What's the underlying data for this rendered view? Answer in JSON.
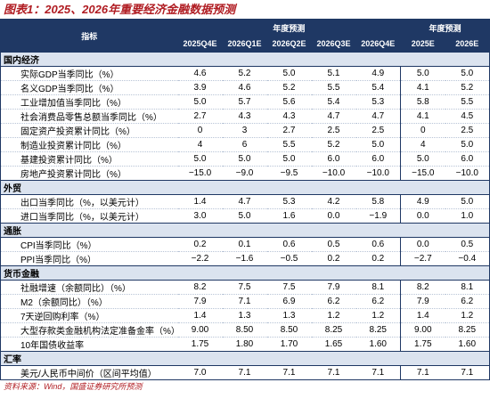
{
  "title": "图表1：2025、2026年重要经济金融数据预测",
  "header": {
    "indicator": "指标",
    "group_quarterly": "年度预测",
    "group_annual": "年度预测",
    "columns": [
      "2025Q4E",
      "2026Q1E",
      "2026Q2E",
      "2026Q3E",
      "2026Q4E",
      "2025E",
      "2026E"
    ]
  },
  "sections": [
    {
      "title": "国内经济",
      "rows": [
        {
          "label": "实际GDP当季同比（%）",
          "values": [
            "4.6",
            "5.2",
            "5.0",
            "5.1",
            "4.9",
            "5.0",
            "5.0"
          ]
        },
        {
          "label": "名义GDP当季同比（%）",
          "values": [
            "3.9",
            "4.6",
            "5.2",
            "5.5",
            "5.4",
            "4.1",
            "5.2"
          ]
        },
        {
          "label": "工业增加值当季同比（%）",
          "values": [
            "5.0",
            "5.7",
            "5.6",
            "5.4",
            "5.3",
            "5.8",
            "5.5"
          ]
        },
        {
          "label": "社会消费品零售总额当季同比（%）",
          "values": [
            "2.7",
            "4.3",
            "4.3",
            "4.7",
            "4.7",
            "4.1",
            "4.5"
          ]
        },
        {
          "label": "固定资产投资累计同比（%）",
          "values": [
            "0",
            "3",
            "2.7",
            "2.5",
            "2.5",
            "0",
            "2.5"
          ]
        },
        {
          "label": "制造业投资累计同比（%）",
          "values": [
            "4",
            "6",
            "5.5",
            "5.2",
            "5.0",
            "4",
            "5.0"
          ]
        },
        {
          "label": "基建投资累计同比（%）",
          "values": [
            "5.0",
            "5.0",
            "5.0",
            "6.0",
            "6.0",
            "5.0",
            "6.0"
          ]
        },
        {
          "label": "房地产投资累计同比（%）",
          "values": [
            "−15.0",
            "−9.0",
            "−9.5",
            "−10.0",
            "−10.0",
            "−15.0",
            "−10.0"
          ]
        }
      ]
    },
    {
      "title": "外贸",
      "rows": [
        {
          "label": "出口当季同比（%，以美元计）",
          "values": [
            "1.4",
            "4.7",
            "5.3",
            "4.2",
            "5.8",
            "4.9",
            "5.0"
          ]
        },
        {
          "label": "进口当季同比（%，以美元计）",
          "values": [
            "3.0",
            "5.0",
            "1.6",
            "0.0",
            "−1.9",
            "0.0",
            "1.0"
          ]
        }
      ]
    },
    {
      "title": "通胀",
      "rows": [
        {
          "label": "CPI当季同比（%）",
          "values": [
            "0.2",
            "0.1",
            "0.6",
            "0.5",
            "0.6",
            "0.0",
            "0.5"
          ]
        },
        {
          "label": "PPI当季同比（%）",
          "values": [
            "−2.2",
            "−1.6",
            "−0.5",
            "0.2",
            "0.2",
            "−2.7",
            "−0.4"
          ]
        }
      ]
    },
    {
      "title": "货币金融",
      "rows": [
        {
          "label": "社融增速（余额同比）（%）",
          "values": [
            "8.2",
            "7.5",
            "7.5",
            "7.9",
            "8.1",
            "8.2",
            "8.1"
          ]
        },
        {
          "label": "M2（余额同比）（%）",
          "values": [
            "7.9",
            "7.1",
            "6.9",
            "6.2",
            "6.2",
            "7.9",
            "6.2"
          ]
        },
        {
          "label": "7天逆回购利率（%）",
          "values": [
            "1.4",
            "1.3",
            "1.3",
            "1.2",
            "1.2",
            "1.4",
            "1.2"
          ]
        },
        {
          "label": "大型存款类金融机构法定准备金率（%）",
          "values": [
            "9.00",
            "8.50",
            "8.50",
            "8.25",
            "8.25",
            "9.00",
            "8.25"
          ]
        },
        {
          "label": "10年国债收益率",
          "values": [
            "1.75",
            "1.80",
            "1.70",
            "1.65",
            "1.60",
            "1.75",
            "1.60"
          ]
        }
      ]
    },
    {
      "title": "汇率",
      "rows": [
        {
          "label": "美元/人民币中间价（区间平均值）",
          "values": [
            "7.0",
            "7.1",
            "7.1",
            "7.1",
            "7.1",
            "7.1",
            "7.1"
          ]
        }
      ]
    }
  ],
  "source": "资料来源：Wind，国盛证券研究所预测"
}
